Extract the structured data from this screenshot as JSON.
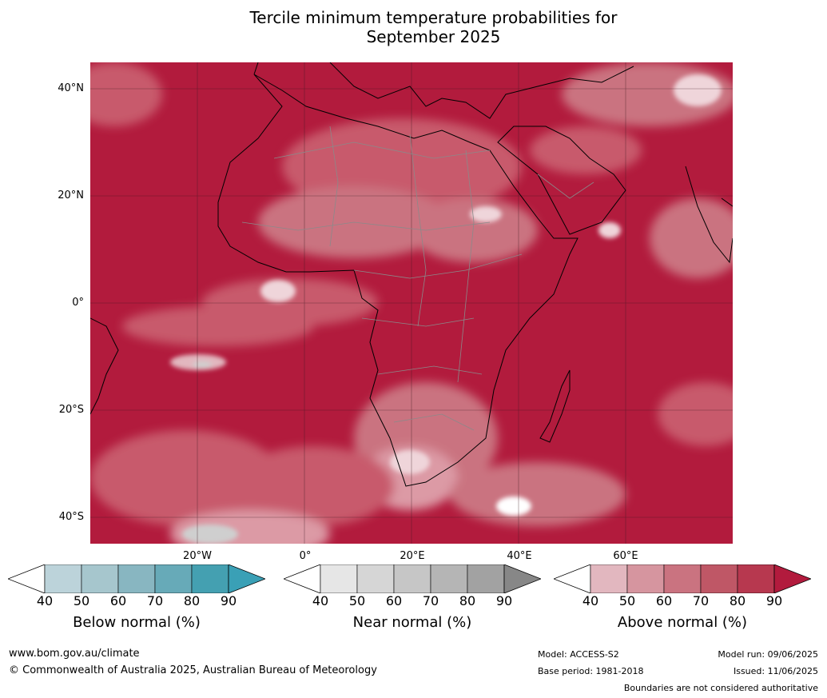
{
  "title_line1": "Tercile minimum temperature probabilities for",
  "title_line2": "September 2025",
  "lat_labels": [
    "40°N",
    "20°N",
    "0°",
    "20°S",
    "40°S"
  ],
  "lon_labels": [
    "20°W",
    "0°",
    "20°E",
    "40°E",
    "60°E"
  ],
  "colorbars": [
    {
      "caption": "Below normal (%)",
      "ticks": [
        "40",
        "50",
        "60",
        "70",
        "80",
        "90"
      ],
      "colors": [
        "#ffffff",
        "#bcd3da",
        "#a6c6cd",
        "#88b6c1",
        "#67aab8",
        "#44a0b1",
        "#3aa0b6"
      ]
    },
    {
      "caption": "Near normal (%)",
      "ticks": [
        "40",
        "50",
        "60",
        "70",
        "80",
        "90"
      ],
      "colors": [
        "#ffffff",
        "#e6e6e6",
        "#d6d6d6",
        "#c6c6c6",
        "#b5b5b5",
        "#a2a2a2",
        "#878787"
      ]
    },
    {
      "caption": "Above normal (%)",
      "ticks": [
        "40",
        "50",
        "60",
        "70",
        "80",
        "90"
      ],
      "colors": [
        "#ffffff",
        "#e2b7bf",
        "#d6959f",
        "#ca7380",
        "#bf5766",
        "#b7384f",
        "#b21b3d"
      ]
    }
  ],
  "footer": {
    "url": "www.bom.gov.au/climate",
    "copyright": "© Commonwealth of Australia 2025, Australian Bureau of Meteorology",
    "model": "Model: ACCESS-S2",
    "base_period": "Base period: 1981-2018",
    "model_run": "Model run: 09/06/2025",
    "issued": "Issued: 11/06/2025",
    "disclaimer": "Boundaries are not considered authoritative"
  },
  "map_colors": {
    "ocean_dark": "#b21b3d",
    "mid": "#c85a6c",
    "light": "#dc9aa5",
    "pale": "#efd5da",
    "near_normal": "#cfcfcf",
    "below": "#a8c7ce"
  }
}
